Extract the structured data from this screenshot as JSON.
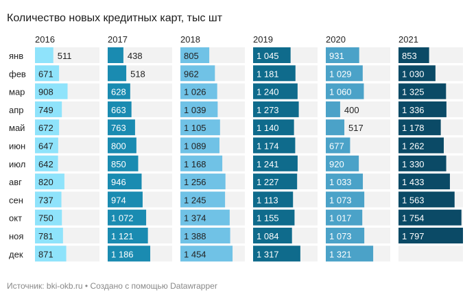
{
  "chart_data": {
    "type": "bar",
    "title": "Количество новых кредитных карт, тыс шт",
    "categories": [
      "янв",
      "фев",
      "мар",
      "апр",
      "май",
      "июн",
      "июл",
      "авг",
      "сен",
      "окт",
      "ноя",
      "дек"
    ],
    "series": [
      {
        "name": "2016",
        "color": "#8fe3fb",
        "label_color": "#222222",
        "values": [
          511,
          671,
          908,
          749,
          672,
          647,
          642,
          820,
          737,
          750,
          781,
          871
        ],
        "labels": [
          "511",
          "671",
          "908",
          "749",
          "672",
          "647",
          "642",
          "820",
          "737",
          "750",
          "781",
          "871"
        ]
      },
      {
        "name": "2017",
        "color": "#1a8bb1",
        "label_color": "#ffffff",
        "values": [
          438,
          518,
          628,
          663,
          763,
          800,
          850,
          946,
          974,
          1072,
          1121,
          1186
        ],
        "labels": [
          "438",
          "518",
          "628",
          "663",
          "763",
          "800",
          "850",
          "946",
          "974",
          "1 072",
          "1 121",
          "1 186"
        ]
      },
      {
        "name": "2018",
        "color": "#70c2e6",
        "label_color": "#222222",
        "values": [
          805,
          962,
          1026,
          1039,
          1105,
          1089,
          1168,
          1256,
          1245,
          1374,
          1388,
          1454
        ],
        "labels": [
          "805",
          "962",
          "1 026",
          "1 039",
          "1 105",
          "1 089",
          "1 168",
          "1 256",
          "1 245",
          "1 374",
          "1 388",
          "1 454"
        ]
      },
      {
        "name": "2019",
        "color": "#0f6b8c",
        "label_color": "#ffffff",
        "values": [
          1045,
          1181,
          1240,
          1273,
          1140,
          1174,
          1241,
          1227,
          1113,
          1155,
          1084,
          1317
        ],
        "labels": [
          "1 045",
          "1 181",
          "1 240",
          "1 273",
          "1 140",
          "1 174",
          "1 241",
          "1 227",
          "1 113",
          "1 155",
          "1 084",
          "1 317"
        ]
      },
      {
        "name": "2020",
        "color": "#4ba2c8",
        "label_color": "#ffffff",
        "values": [
          931,
          1029,
          1060,
          400,
          517,
          677,
          920,
          1033,
          1073,
          1017,
          1073,
          1321
        ],
        "labels": [
          "931",
          "1 029",
          "1 060",
          "400",
          "517",
          "677",
          "920",
          "1 033",
          "1 073",
          "1 017",
          "1 073",
          "1 321"
        ]
      },
      {
        "name": "2021",
        "color": "#0b4a66",
        "label_color": "#ffffff",
        "values": [
          853,
          1030,
          1325,
          1336,
          1178,
          1262,
          1330,
          1433,
          1563,
          1754,
          1797,
          null
        ],
        "labels": [
          "853",
          "1 030",
          "1 325",
          "1 336",
          "1 178",
          "1 262",
          "1 330",
          "1 433",
          "1 563",
          "1 754",
          "1 797",
          ""
        ]
      }
    ],
    "background_color": "#f2f2f2"
  },
  "footer": {
    "source_label": "Источник: ",
    "source_value": "bki-okb.ru",
    "separator": " • ",
    "credit": "Создано с помощью Datawrapper"
  }
}
